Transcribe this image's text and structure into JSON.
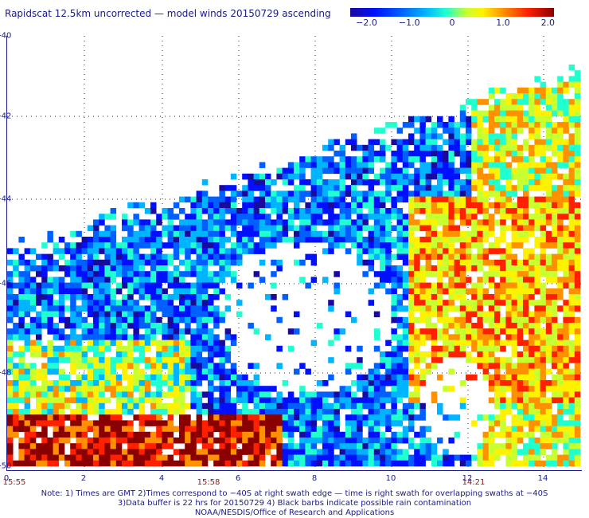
{
  "title": "Rapidscat 12.5km uncorrected — model winds 20150729 ascending",
  "colorbar": {
    "ticks": [
      "−2.0",
      "−1.0",
      "0",
      "1.0",
      "2.0"
    ],
    "tick_values": [
      -2.0,
      -1.0,
      0,
      1.0,
      2.0
    ],
    "colors": [
      "#1a0a9c",
      "#0010ff",
      "#0060ff",
      "#00b4ff",
      "#20ffd0",
      "#c8ff30",
      "#fff200",
      "#ff9000",
      "#ff2000",
      "#8a0000"
    ]
  },
  "map": {
    "y_labels": [
      "-40",
      "-42",
      "-44",
      "-46",
      "-48",
      "-50"
    ],
    "x_labels": [
      "0",
      "2",
      "4",
      "6",
      "8",
      "10",
      "12",
      "14"
    ],
    "time_labels": [
      "15:55",
      "15:58",
      "14:21"
    ],
    "time_positions": [
      0,
      5,
      12
    ]
  },
  "notes": [
    "Note: 1) Times are GMT 2)Times correspond to −40S at right swath edge — time is right swath for overlapping swaths at −40S",
    "3)Data buffer is 22 hrs for 20150729 4) Black barbs indicate possible rain contamination",
    "NOAA/NESDIS/Office of Research and Applications"
  ]
}
